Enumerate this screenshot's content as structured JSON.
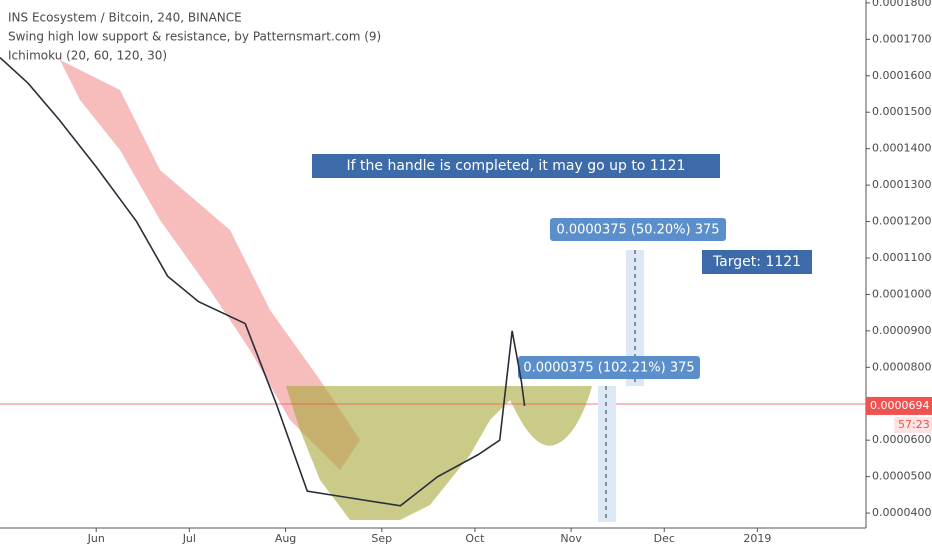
{
  "chart_data": {
    "type": "line",
    "title": "INS Ecosystem / Bitcoin, 240, BINANCE",
    "indicators": [
      "Swing high low support & resistance, by Patternsmart.com (9)",
      "Ichimoku (20, 60, 120, 30)"
    ],
    "annotations": [
      "If the handle is completed, it may go up to 1121",
      "0.0000375 (50.20%) 375",
      "0.0000375 (102.21%) 375",
      "Target: 1121"
    ],
    "countdown": "57:23",
    "last_price": {
      "value": 6.94e-05,
      "label": "0.0000694"
    },
    "x": [
      121,
      130,
      140,
      152,
      165,
      175,
      185,
      200,
      210,
      220,
      235,
      250,
      262,
      275,
      282,
      286,
      289,
      290
    ],
    "series": [
      {
        "color": "#2a2e39",
        "values": [
          0.000165,
          0.000158,
          0.000148,
          0.000135,
          0.00012,
          0.000105,
          9.8e-05,
          9.2e-05,
          7e-05,
          4.6e-05,
          4.4e-05,
          4.2e-05,
          5e-05,
          5.6e-05,
          6e-05,
          9e-05,
          7.6e-05,
          6.94e-05
        ]
      }
    ],
    "xlim": [
      121,
      400
    ],
    "ylim": [
      3.59e-05,
      0.0001808
    ],
    "xticks": [
      {
        "value": 152,
        "label": "Jun"
      },
      {
        "value": 182,
        "label": "Jul"
      },
      {
        "value": 213,
        "label": "Aug"
      },
      {
        "value": 244,
        "label": "Sep"
      },
      {
        "value": 274,
        "label": "Oct"
      },
      {
        "value": 305,
        "label": "Nov"
      },
      {
        "value": 335,
        "label": "Dec"
      },
      {
        "value": 365,
        "label": "2019"
      }
    ],
    "yticks": [
      {
        "value": 0.00018,
        "label": "0.0001800"
      },
      {
        "value": 0.00017,
        "label": "0.0001700"
      },
      {
        "value": 0.00016,
        "label": "0.0001600"
      },
      {
        "value": 0.00015,
        "label": "0.0001500"
      },
      {
        "value": 0.00014,
        "label": "0.0001400"
      },
      {
        "value": 0.00013,
        "label": "0.0001300"
      },
      {
        "value": 0.00012,
        "label": "0.0001200"
      },
      {
        "value": 0.00011,
        "label": "0.0001100"
      },
      {
        "value": 0.0001,
        "label": "0.0001000"
      },
      {
        "value": 9e-05,
        "label": "0.0000900"
      },
      {
        "value": 8e-05,
        "label": "0.0000800"
      },
      {
        "value": 7e-05,
        "label": "0.0000700"
      },
      {
        "value": 6e-05,
        "label": "0.0000600"
      },
      {
        "value": 5e-05,
        "label": "0.0000500"
      },
      {
        "value": 4e-05,
        "label": "0.0000400"
      }
    ]
  }
}
